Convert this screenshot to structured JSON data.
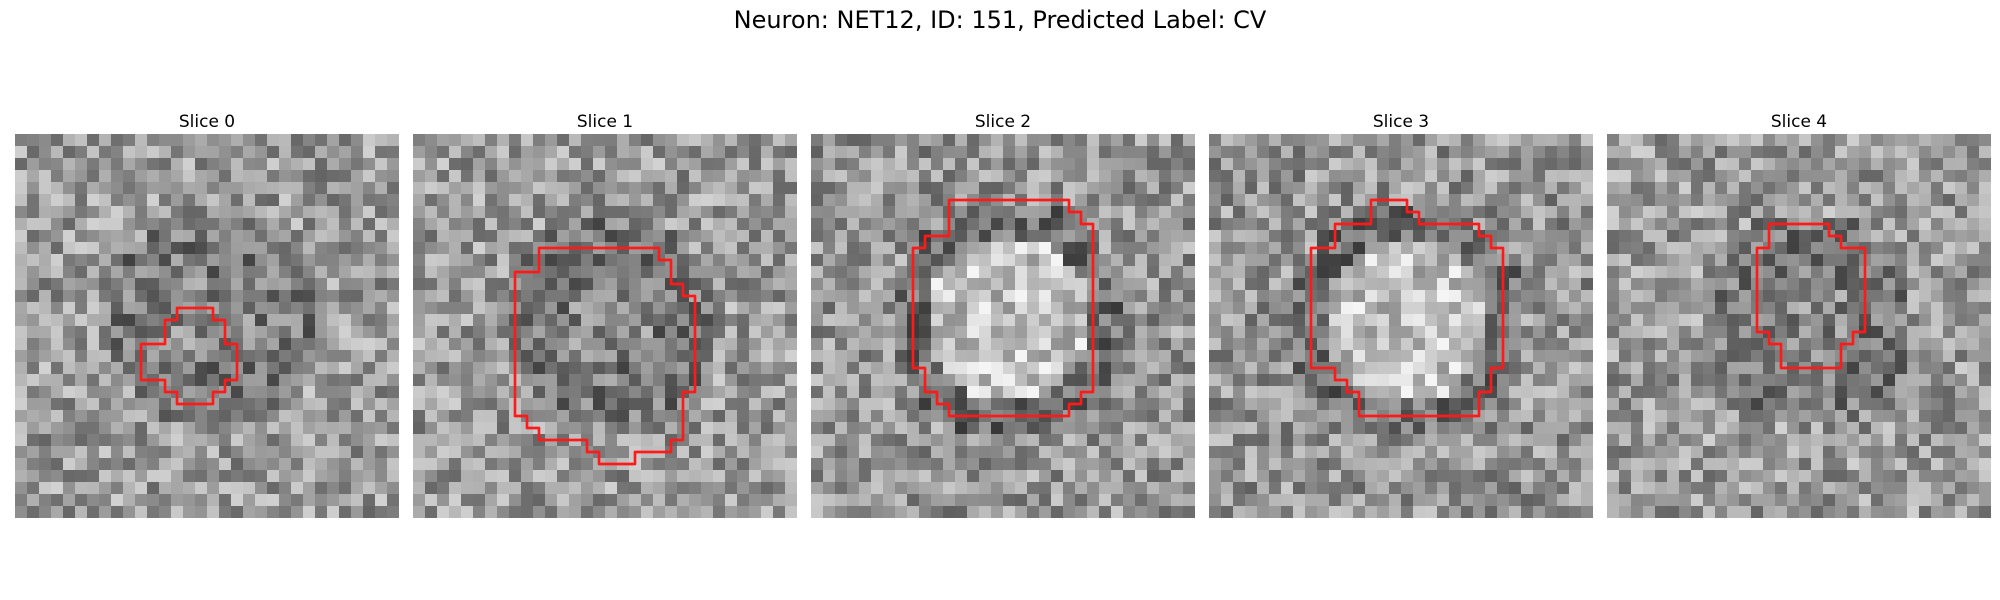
{
  "figure": {
    "title": "Neuron: NET12, ID: 151, Predicted Label: CV"
  },
  "outline_color": "#ff1a1a",
  "panels": [
    {
      "title": "Slice 0",
      "seed": 11,
      "bright_center": false
    },
    {
      "title": "Slice 1",
      "seed": 23,
      "bright_center": false
    },
    {
      "title": "Slice 2",
      "seed": 37,
      "bright_center": true
    },
    {
      "title": "Slice 3",
      "seed": 51,
      "bright_center": true
    },
    {
      "title": "Slice 4",
      "seed": 73,
      "bright_center": false
    }
  ]
}
